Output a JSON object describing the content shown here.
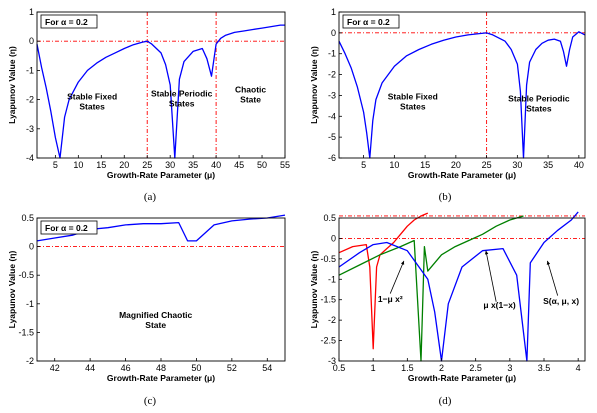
{
  "colors": {
    "series_blue": "#0000ff",
    "series_red": "#ff0000",
    "series_green": "#008000",
    "ref_line": "#ff0000"
  },
  "chart_data": [
    {
      "id": "a",
      "type": "line",
      "caption": "(a)",
      "box_label": "For α = 0.2",
      "xlabel": "Growth-Rate Parameter (μ)",
      "ylabel": "Lyapunov Value (η)",
      "xlim": [
        1,
        55
      ],
      "ylim": [
        -4,
        1
      ],
      "xticks": [
        5,
        10,
        15,
        20,
        25,
        30,
        35,
        40,
        45,
        50,
        55
      ],
      "yticks": [
        1,
        0,
        -1,
        -2,
        -3,
        -4
      ],
      "ref_hlines": [
        0
      ],
      "ref_vlines": [
        25,
        40
      ],
      "annotations": [
        {
          "text": "Stable Fixed States",
          "x": 13,
          "y": -2.0
        },
        {
          "text": "Stable Periodic States",
          "x": 32.5,
          "y": -1.9
        },
        {
          "text": "Chaotic State",
          "x": 47.5,
          "y": -1.75
        }
      ],
      "series": [
        {
          "color": "blue",
          "x": [
            1,
            2,
            3,
            4,
            5,
            6,
            7,
            8,
            10,
            12,
            14,
            16,
            18,
            20,
            22,
            24,
            25,
            26,
            28,
            29,
            30,
            31,
            32,
            33,
            35,
            37,
            38,
            39,
            40,
            41,
            42,
            44,
            46,
            48,
            50,
            52,
            54,
            55
          ],
          "y": [
            -0.1,
            -0.9,
            -1.6,
            -2.4,
            -3.3,
            -4,
            -2.6,
            -2.0,
            -1.4,
            -1.0,
            -0.75,
            -0.55,
            -0.4,
            -0.25,
            -0.12,
            -0.03,
            0,
            -0.1,
            -0.4,
            -0.8,
            -1.5,
            -4,
            -1.3,
            -0.7,
            -0.35,
            -0.25,
            -0.6,
            -1.2,
            -0.1,
            0.1,
            0.2,
            0.3,
            0.35,
            0.4,
            0.45,
            0.5,
            0.55,
            0.55
          ]
        }
      ]
    },
    {
      "id": "b",
      "type": "line",
      "caption": "(b)",
      "box_label": "For α = 0.2",
      "xlabel": "Growth-Rate Parameter (μ)",
      "ylabel": "Lyapunov Value (η)",
      "xlim": [
        1,
        41
      ],
      "ylim": [
        -6,
        1
      ],
      "xticks": [
        5,
        10,
        15,
        20,
        25,
        30,
        35,
        40
      ],
      "yticks": [
        1,
        0,
        -1,
        -2,
        -3,
        -4,
        -5,
        -6
      ],
      "ref_hlines": [
        0
      ],
      "ref_vlines": [
        25
      ],
      "annotations": [
        {
          "text": "Stable Fixed States",
          "x": 13,
          "y": -3.2
        },
        {
          "text": "Stable Periodic States",
          "x": 33.5,
          "y": -3.3
        }
      ],
      "series": [
        {
          "color": "blue",
          "x": [
            1,
            2,
            3,
            4,
            5,
            5.5,
            6,
            6.5,
            7,
            8,
            10,
            12,
            14,
            16,
            18,
            20,
            22,
            24,
            25,
            26,
            28,
            29,
            30,
            30.5,
            31,
            31.5,
            32,
            33,
            34,
            35,
            36,
            37,
            37.5,
            38,
            38.5,
            39,
            40,
            41
          ],
          "y": [
            -0.4,
            -1.0,
            -1.7,
            -2.6,
            -3.8,
            -4.8,
            -6,
            -4.2,
            -3.2,
            -2.4,
            -1.6,
            -1.1,
            -0.8,
            -0.55,
            -0.35,
            -0.2,
            -0.1,
            -0.03,
            0,
            -0.1,
            -0.4,
            -0.8,
            -1.5,
            -2.8,
            -6,
            -2.5,
            -1.4,
            -0.8,
            -0.5,
            -0.35,
            -0.3,
            -0.4,
            -0.9,
            -1.6,
            -0.8,
            -0.2,
            0.05,
            -0.1
          ]
        }
      ]
    },
    {
      "id": "c",
      "type": "line",
      "caption": "(c)",
      "box_label": "For α = 0.2",
      "xlabel": "Growth-Rate Parameter (μ)",
      "ylabel": "Lyapunov Value (η)",
      "xlim": [
        41,
        55
      ],
      "ylim": [
        -2,
        0.5
      ],
      "xticks": [
        42,
        44,
        46,
        48,
        50,
        52,
        54
      ],
      "yticks": [
        0.5,
        0,
        -0.5,
        -1,
        -1.5,
        -2
      ],
      "ref_hlines": [
        0
      ],
      "ref_vlines": [],
      "annotations": [
        {
          "text": "Magnified Chaotic State",
          "x": 47.7,
          "y": -1.25
        }
      ],
      "series": [
        {
          "color": "blue",
          "x": [
            41,
            42,
            43,
            44,
            45,
            46,
            47,
            48,
            49,
            49.5,
            50,
            51,
            52,
            53,
            54,
            55
          ],
          "y": [
            0.1,
            0.15,
            0.2,
            0.3,
            0.33,
            0.38,
            0.4,
            0.4,
            0.42,
            0.1,
            0.1,
            0.38,
            0.45,
            0.48,
            0.5,
            0.55
          ]
        }
      ]
    },
    {
      "id": "d",
      "type": "line",
      "caption": "(d)",
      "box_label": "",
      "xlabel": "Growth-Rate Parameter (μ)",
      "ylabel": "Lyapunov Value (η)",
      "xlim": [
        0.5,
        4.1
      ],
      "ylim": [
        -3,
        0.5
      ],
      "xticks": [
        0.5,
        1,
        1.5,
        2,
        2.5,
        3,
        3.5,
        4
      ],
      "yticks": [
        0.5,
        0,
        -0.5,
        -1,
        -1.5,
        -2,
        -2.5,
        -3
      ],
      "ref_hlines": [
        0.55,
        0
      ],
      "ref_vlines": [],
      "annotations": [
        {
          "text": "1−μ x²",
          "x": 1.25,
          "y": -1.55
        },
        {
          "text": "μ x(1−x)",
          "x": 2.85,
          "y": -1.7
        },
        {
          "text": "S(α, μ, x)",
          "x": 3.75,
          "y": -1.6
        }
      ],
      "series": [
        {
          "color": "red",
          "x": [
            0.5,
            0.7,
            0.9,
            0.95,
            1.0,
            1.05,
            1.1,
            1.2,
            1.3,
            1.4,
            1.5,
            1.6,
            1.7,
            1.8
          ],
          "y": [
            -0.35,
            -0.2,
            -0.15,
            -0.7,
            -2.7,
            -0.7,
            -0.4,
            -0.25,
            -0.1,
            0.1,
            0.3,
            0.45,
            0.55,
            0.62
          ]
        },
        {
          "color": "green",
          "x": [
            0.5,
            0.8,
            1.1,
            1.4,
            1.6,
            1.7,
            1.75,
            1.8,
            2.0,
            2.2,
            2.4,
            2.6,
            2.8,
            3.0,
            3.2
          ],
          "y": [
            -0.9,
            -0.65,
            -0.4,
            -0.2,
            -0.05,
            -3,
            -0.2,
            -0.8,
            -0.4,
            -0.2,
            -0.05,
            0.1,
            0.3,
            0.45,
            0.55
          ]
        },
        {
          "color": "blue",
          "x": [
            0.5,
            0.8,
            1.0,
            1.2,
            1.5,
            1.8,
            1.9,
            2.0,
            2.1,
            2.3,
            2.6,
            2.9,
            3.1,
            3.25,
            3.3,
            3.5,
            3.7,
            3.9,
            4.0
          ],
          "y": [
            -0.7,
            -0.35,
            -0.15,
            -0.1,
            -0.3,
            -1.0,
            -1.8,
            -3,
            -1.6,
            -0.7,
            -0.3,
            -0.25,
            -0.9,
            -3,
            -0.6,
            -0.1,
            0.2,
            0.45,
            0.65
          ]
        }
      ]
    }
  ]
}
